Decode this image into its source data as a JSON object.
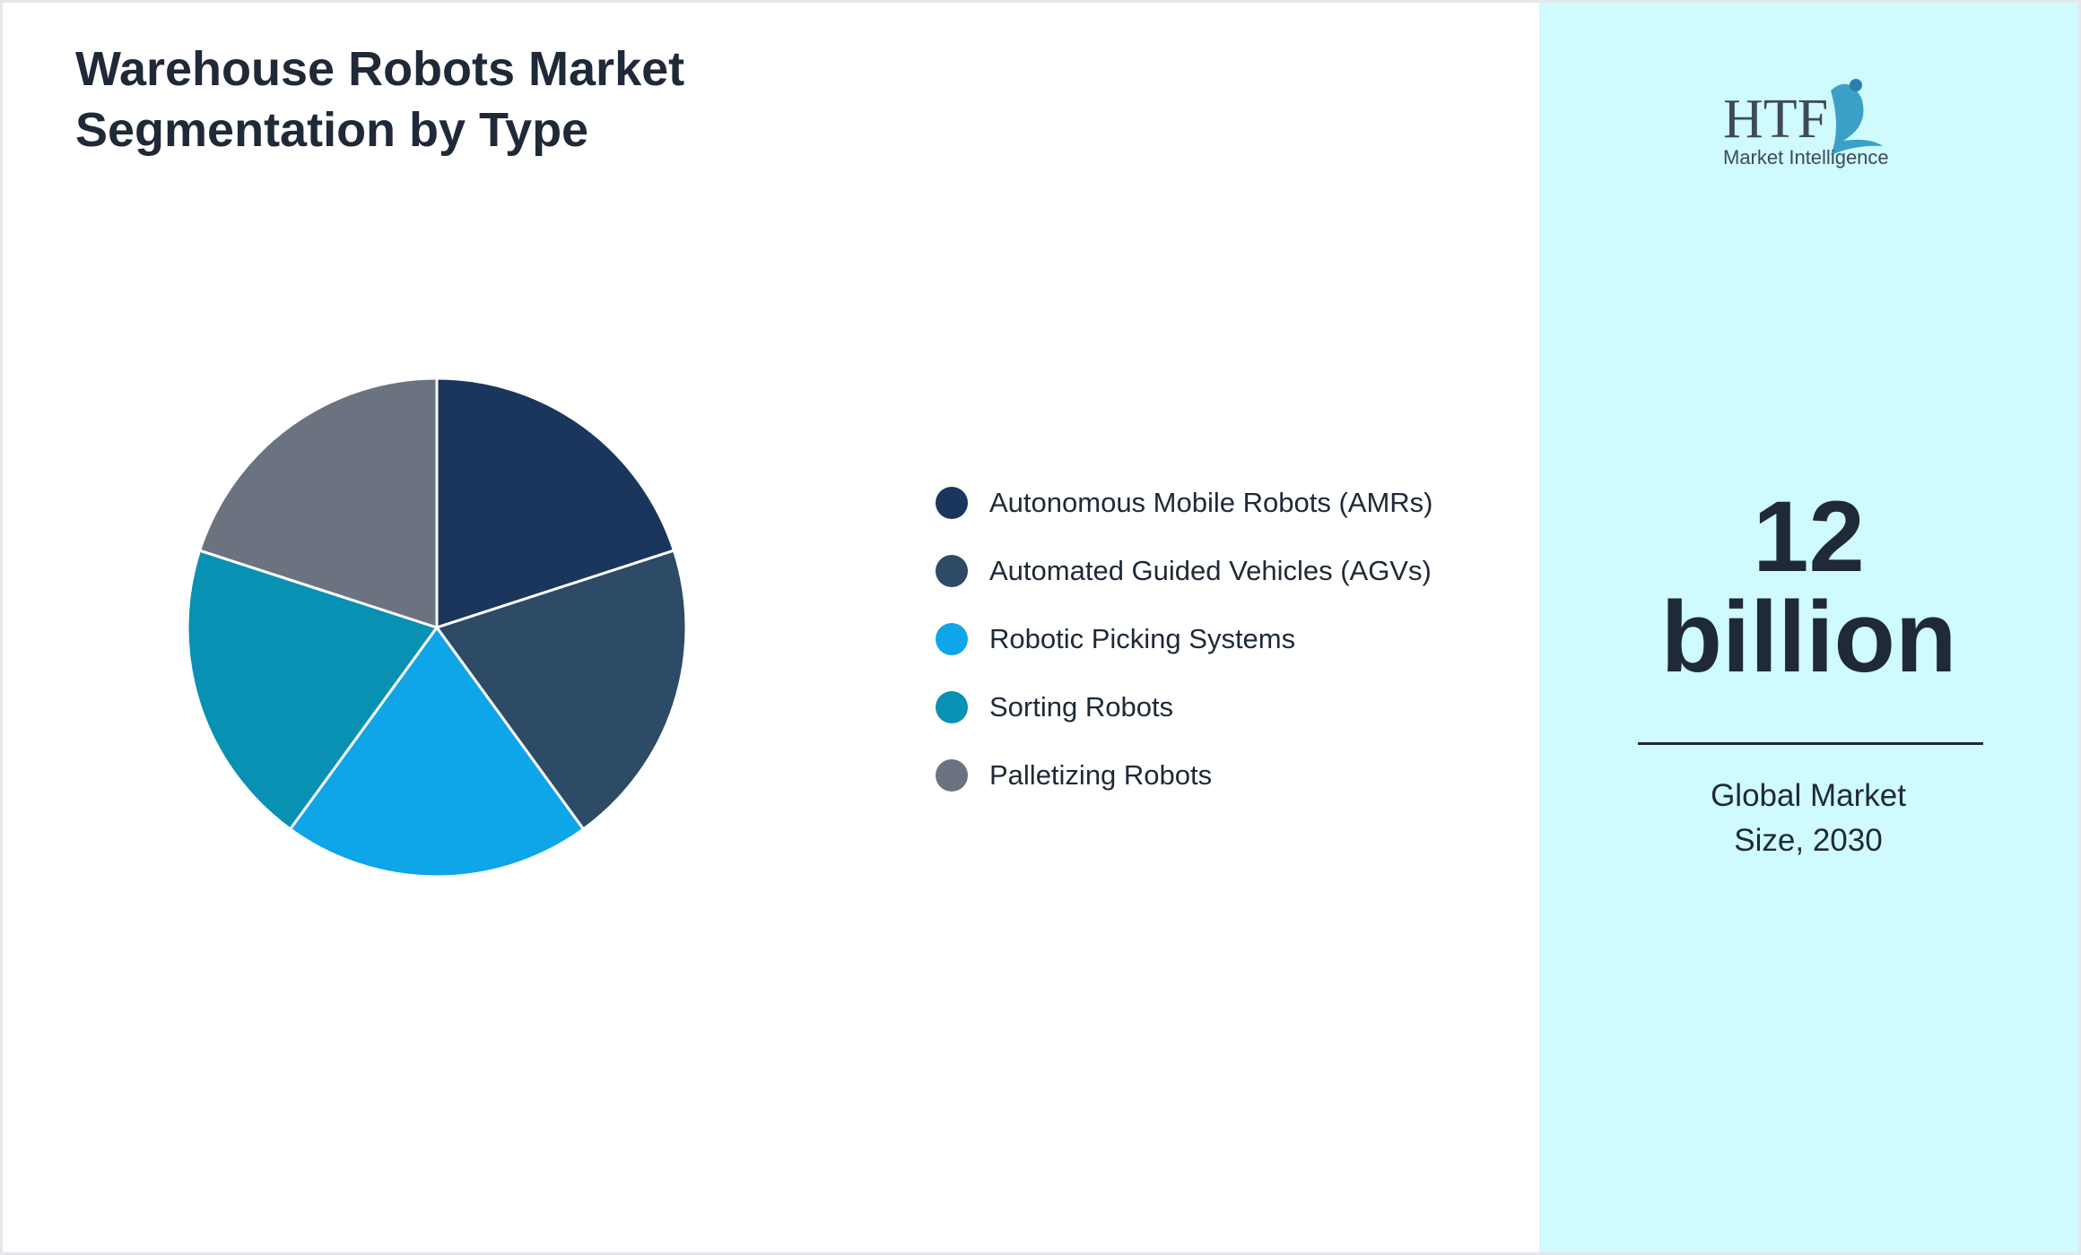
{
  "chart_data": {
    "type": "pie",
    "title": "Warehouse Robots Market Segmentation by Type",
    "categories": [
      "Autonomous Mobile Robots (AMRs)",
      "Automated Guided Vehicles (AGVs)",
      "Robotic Picking Systems",
      "Sorting Robots",
      "Palletizing Robots"
    ],
    "values": [
      20,
      20,
      20,
      20,
      20
    ],
    "colors": [
      "#1b365d",
      "#2d4a66",
      "#0ea5e9",
      "#0891b2",
      "#6b7280"
    ]
  },
  "logo": {
    "mark": "HTF",
    "tagline": "Market Intelligence"
  },
  "side_panel": {
    "value": "12",
    "unit": "billion",
    "caption": "Global Market Size, 2030"
  }
}
